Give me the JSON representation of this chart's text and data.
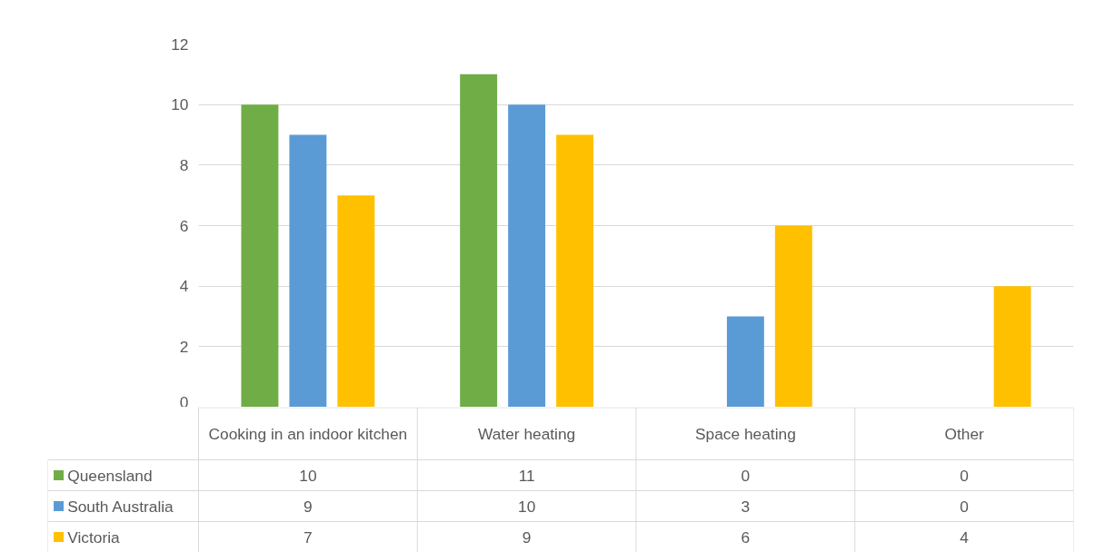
{
  "chart_data": {
    "type": "bar",
    "categories": [
      "Cooking in an indoor kitchen",
      "Water heating",
      "Space heating",
      "Other"
    ],
    "series": [
      {
        "name": "Queensland",
        "color": "#70ad47",
        "values": [
          10,
          11,
          0,
          0
        ]
      },
      {
        "name": "South Australia",
        "color": "#5b9bd5",
        "values": [
          9,
          10,
          3,
          0
        ]
      },
      {
        "name": "Victoria",
        "color": "#ffc000",
        "values": [
          7,
          9,
          6,
          4
        ]
      }
    ],
    "ylim": [
      0,
      12
    ],
    "yticks": [
      0,
      2,
      4,
      6,
      8,
      10,
      12
    ],
    "grid": "y",
    "legend": "bottom",
    "data_labels": true
  }
}
